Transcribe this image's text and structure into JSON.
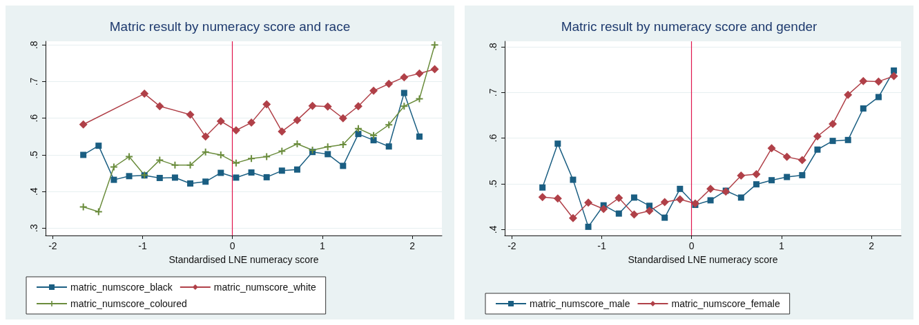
{
  "chart_data": [
    {
      "type": "line",
      "title": "Matric result by numeracy score and race",
      "xlabel": "Standardised LNE numeracy score",
      "xlim": [
        -2.08,
        2.33
      ],
      "xticks": [
        -2,
        -1,
        0,
        1,
        2
      ],
      "ylim": [
        0.28,
        0.81
      ],
      "yticks": [
        {
          "value": 0.3,
          "label": ".3"
        },
        {
          "value": 0.4,
          "label": ".4"
        },
        {
          "value": 0.5,
          "label": ".5"
        },
        {
          "value": 0.6,
          "label": ".6"
        },
        {
          "value": 0.7,
          "label": ".7"
        },
        {
          "value": 0.8,
          "label": ".8"
        }
      ],
      "grid": "y",
      "legend": "bottom",
      "ref_lines": [
        {
          "axis": "x",
          "value": 0,
          "label": null,
          "color": "#e0144c"
        }
      ],
      "series": [
        {
          "name": "matric_numscore_black",
          "color": "#1a5e82",
          "marker": "square",
          "x": [
            -1.66,
            -1.49,
            -1.32,
            -1.15,
            -0.98,
            -0.81,
            -0.64,
            -0.47,
            -0.3,
            -0.13,
            0.04,
            0.21,
            0.38,
            0.55,
            0.72,
            0.89,
            1.06,
            1.23,
            1.4,
            1.57,
            1.74,
            1.91,
            2.08
          ],
          "values": [
            0.5,
            0.525,
            0.432,
            0.442,
            0.444,
            0.437,
            0.438,
            0.422,
            0.427,
            0.451,
            0.438,
            0.452,
            0.439,
            0.457,
            0.46,
            0.508,
            0.502,
            0.47,
            0.557,
            0.54,
            0.523,
            0.669,
            0.55
          ]
        },
        {
          "name": "matric_numscore_white",
          "color": "#b04048",
          "marker": "diamond",
          "x": [
            -1.66,
            -0.98,
            -0.81,
            -0.47,
            -0.3,
            -0.13,
            0.04,
            0.21,
            0.38,
            0.55,
            0.72,
            0.89,
            1.06,
            1.23,
            1.4,
            1.57,
            1.74,
            1.91,
            2.08,
            2.25
          ],
          "values": [
            0.583,
            0.667,
            0.633,
            0.61,
            0.55,
            0.592,
            0.567,
            0.588,
            0.638,
            0.564,
            0.595,
            0.634,
            0.632,
            0.6,
            0.633,
            0.675,
            0.694,
            0.712,
            0.722,
            0.734
          ]
        },
        {
          "name": "matric_numscore_coloured",
          "color": "#6a8c3c",
          "marker": "cross",
          "x": [
            -1.66,
            -1.49,
            -1.32,
            -1.15,
            -0.98,
            -0.81,
            -0.64,
            -0.47,
            -0.3,
            -0.13,
            0.04,
            0.21,
            0.38,
            0.55,
            0.72,
            0.89,
            1.06,
            1.23,
            1.4,
            1.57,
            1.74,
            1.91,
            2.08,
            2.25
          ],
          "values": [
            0.358,
            0.345,
            0.467,
            0.495,
            0.445,
            0.486,
            0.472,
            0.472,
            0.508,
            0.5,
            0.478,
            0.49,
            0.495,
            0.51,
            0.53,
            0.513,
            0.522,
            0.528,
            0.572,
            0.553,
            0.582,
            0.633,
            0.653,
            0.8
          ]
        }
      ]
    },
    {
      "type": "line",
      "title": "Matric result by numeracy score and gender",
      "xlabel": "Standardised LNE numeracy score",
      "xlim": [
        -2.08,
        2.33
      ],
      "xticks": [
        -2,
        -1,
        0,
        1,
        2
      ],
      "ylim": [
        0.387,
        0.812
      ],
      "yticks": [
        {
          "value": 0.4,
          "label": ".4"
        },
        {
          "value": 0.5,
          "label": ".5"
        },
        {
          "value": 0.6,
          "label": ".6"
        },
        {
          "value": 0.7,
          "label": ".7"
        },
        {
          "value": 0.8,
          "label": ".8"
        }
      ],
      "grid": "y",
      "legend": "bottom",
      "ref_lines": [
        {
          "axis": "x",
          "value": 0,
          "label": null,
          "color": "#e0144c"
        }
      ],
      "series": [
        {
          "name": "matric_numscore_male",
          "color": "#1a5e82",
          "marker": "square",
          "x": [
            -1.66,
            -1.49,
            -1.32,
            -1.15,
            -0.98,
            -0.81,
            -0.64,
            -0.47,
            -0.3,
            -0.13,
            0.04,
            0.21,
            0.38,
            0.55,
            0.72,
            0.89,
            1.06,
            1.23,
            1.4,
            1.57,
            1.74,
            1.91,
            2.08,
            2.25
          ],
          "values": [
            0.492,
            0.588,
            0.509,
            0.406,
            0.453,
            0.435,
            0.47,
            0.452,
            0.426,
            0.489,
            0.454,
            0.464,
            0.485,
            0.47,
            0.499,
            0.508,
            0.515,
            0.519,
            0.575,
            0.594,
            0.596,
            0.665,
            0.69,
            0.748
          ]
        },
        {
          "name": "matric_numscore_female",
          "color": "#b04048",
          "marker": "diamond",
          "x": [
            -1.66,
            -1.49,
            -1.32,
            -1.15,
            -0.98,
            -0.81,
            -0.64,
            -0.47,
            -0.3,
            -0.13,
            0.04,
            0.21,
            0.38,
            0.55,
            0.72,
            0.89,
            1.06,
            1.23,
            1.4,
            1.57,
            1.74,
            1.91,
            2.08,
            2.25
          ],
          "values": [
            0.471,
            0.468,
            0.425,
            0.459,
            0.445,
            0.469,
            0.433,
            0.441,
            0.46,
            0.466,
            0.457,
            0.489,
            0.483,
            0.518,
            0.521,
            0.578,
            0.559,
            0.552,
            0.604,
            0.631,
            0.695,
            0.725,
            0.724,
            0.736
          ]
        }
      ]
    }
  ]
}
